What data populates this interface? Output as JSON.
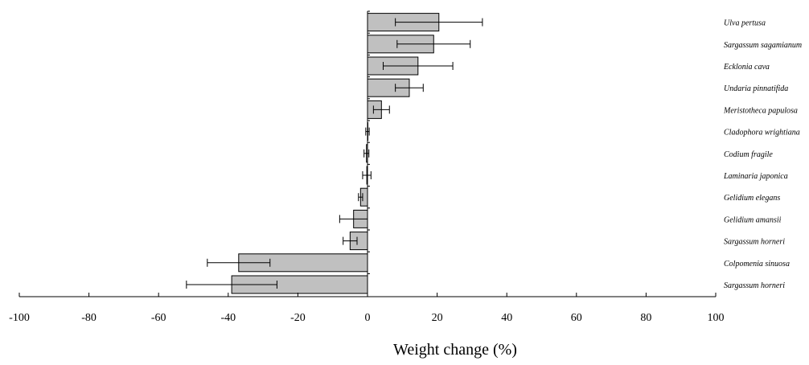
{
  "chart_data": {
    "type": "bar",
    "orientation": "horizontal",
    "title": "",
    "xlabel": "Weight change (%)",
    "ylabel": "",
    "xlim": [
      -100,
      100
    ],
    "xticks": [
      -100,
      -80,
      -60,
      -40,
      -20,
      0,
      20,
      40,
      60,
      80,
      100
    ],
    "grid": false,
    "legend": "none",
    "bar_color": "#c0c0c0",
    "categories": [
      "Ulva pertusa",
      "Sargassum sagamianum",
      "Ecklonia cava",
      "Undaria pinnatifida",
      "Meristotheca papulosa",
      "Cladophora wrightiana",
      "Codium fragile",
      "Laminaria japonica",
      "Gelidium elegans",
      "Gelidium amansii",
      "Sargassum horneri",
      "Colpomenia sinuosa",
      "Sargassum horneri"
    ],
    "values": [
      20.5,
      19,
      14.5,
      12,
      4,
      0,
      -0.3,
      -0.2,
      -2,
      -4,
      -5,
      -37,
      -39
    ],
    "errors": [
      12.5,
      10.5,
      10,
      4,
      2.3,
      0.5,
      0.7,
      1.2,
      0.6,
      4,
      2,
      9,
      13
    ]
  }
}
